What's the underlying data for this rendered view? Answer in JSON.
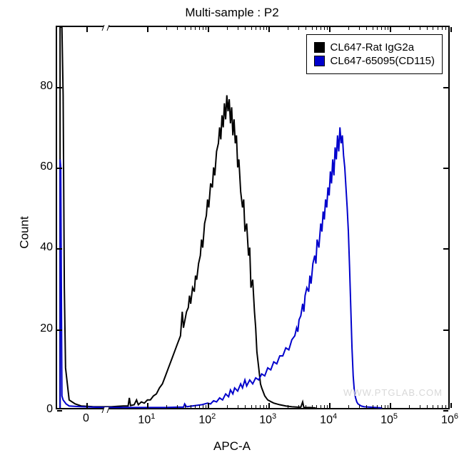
{
  "chart": {
    "type": "flow-cytometry-histogram",
    "title": "Multi-sample : P2",
    "xlabel": "APC-A",
    "ylabel": "Count",
    "background_color": "#ffffff",
    "border_color": "#000000",
    "ylim": [
      0,
      95
    ],
    "yticks": [
      0,
      20,
      40,
      60,
      80
    ],
    "xlim_log": [
      -0.5,
      6
    ],
    "xticks_log": [
      0,
      1,
      2,
      3,
      4,
      5,
      6
    ],
    "xtick_labels": [
      "0",
      "10^1",
      "10^2",
      "10^3",
      "10^4",
      "10^5",
      "10^6"
    ],
    "x_axis_break_at": 0.3,
    "title_fontsize": 17,
    "label_fontsize": 17,
    "tick_fontsize": 16,
    "line_width": 2,
    "watermark": "WWW.PTGLAB.COM",
    "watermark_color": "#d8d8d8",
    "legend": {
      "position": "top-right",
      "border_color": "#000000",
      "items": [
        {
          "label": "CL647-Rat IgG2a",
          "color": "#000000"
        },
        {
          "label": "CL647-65095(CD115)",
          "color": "#0000cc"
        }
      ]
    },
    "series": [
      {
        "name": "CL647-Rat IgG2a",
        "color": "#000000",
        "points": [
          [
            -0.45,
            0
          ],
          [
            -0.45,
            95
          ],
          [
            -0.42,
            95
          ],
          [
            -0.4,
            78
          ],
          [
            -0.38,
            30
          ],
          [
            -0.36,
            10
          ],
          [
            -0.3,
            2
          ],
          [
            -0.2,
            1
          ],
          [
            -0.1,
            0.5
          ],
          [
            0.0,
            0.4
          ],
          [
            0.1,
            0.3
          ],
          [
            0.2,
            0.3
          ],
          [
            0.3,
            0.3
          ],
          [
            0.4,
            0.3
          ],
          [
            0.5,
            0.4
          ],
          [
            0.6,
            0.5
          ],
          [
            0.68,
            0.5
          ],
          [
            0.7,
            2.5
          ],
          [
            0.72,
            0.6
          ],
          [
            0.78,
            0.8
          ],
          [
            0.82,
            2
          ],
          [
            0.85,
            0.8
          ],
          [
            0.9,
            1.5
          ],
          [
            0.95,
            1.2
          ],
          [
            1.0,
            2
          ],
          [
            1.05,
            2
          ],
          [
            1.1,
            3
          ],
          [
            1.15,
            3.5
          ],
          [
            1.2,
            5
          ],
          [
            1.25,
            6
          ],
          [
            1.3,
            8
          ],
          [
            1.35,
            10
          ],
          [
            1.4,
            12
          ],
          [
            1.45,
            14
          ],
          [
            1.5,
            16
          ],
          [
            1.55,
            18
          ],
          [
            1.58,
            24
          ],
          [
            1.6,
            20
          ],
          [
            1.65,
            24
          ],
          [
            1.68,
            25
          ],
          [
            1.7,
            28
          ],
          [
            1.72,
            26
          ],
          [
            1.75,
            30
          ],
          [
            1.78,
            29
          ],
          [
            1.8,
            33
          ],
          [
            1.82,
            32
          ],
          [
            1.85,
            36
          ],
          [
            1.88,
            38
          ],
          [
            1.9,
            42
          ],
          [
            1.92,
            40
          ],
          [
            1.95,
            46
          ],
          [
            1.98,
            48
          ],
          [
            2.0,
            52
          ],
          [
            2.02,
            50
          ],
          [
            2.05,
            56
          ],
          [
            2.08,
            55
          ],
          [
            2.1,
            60
          ],
          [
            2.12,
            58
          ],
          [
            2.15,
            64
          ],
          [
            2.18,
            66
          ],
          [
            2.2,
            70
          ],
          [
            2.22,
            67
          ],
          [
            2.24,
            73
          ],
          [
            2.26,
            70
          ],
          [
            2.28,
            76
          ],
          [
            2.3,
            72
          ],
          [
            2.32,
            78
          ],
          [
            2.34,
            74
          ],
          [
            2.36,
            77
          ],
          [
            2.38,
            71
          ],
          [
            2.4,
            75
          ],
          [
            2.42,
            68
          ],
          [
            2.44,
            72
          ],
          [
            2.46,
            66
          ],
          [
            2.48,
            68
          ],
          [
            2.5,
            60
          ],
          [
            2.52,
            62
          ],
          [
            2.55,
            54
          ],
          [
            2.58,
            50
          ],
          [
            2.6,
            52
          ],
          [
            2.62,
            44
          ],
          [
            2.65,
            46
          ],
          [
            2.68,
            38
          ],
          [
            2.7,
            40
          ],
          [
            2.72,
            30
          ],
          [
            2.75,
            32
          ],
          [
            2.78,
            24
          ],
          [
            2.8,
            20
          ],
          [
            2.82,
            14
          ],
          [
            2.85,
            10
          ],
          [
            2.88,
            6
          ],
          [
            2.9,
            5
          ],
          [
            2.95,
            3
          ],
          [
            3.0,
            2
          ],
          [
            3.1,
            1.2
          ],
          [
            3.2,
            0.8
          ],
          [
            3.3,
            0.5
          ],
          [
            3.4,
            0.3
          ],
          [
            3.5,
            0.2
          ],
          [
            3.55,
            0.2
          ],
          [
            3.58,
            1.5
          ],
          [
            3.6,
            0.1
          ],
          [
            3.7,
            0.1
          ],
          [
            3.8,
            0
          ]
        ]
      },
      {
        "name": "CL647-65095(CD115)",
        "color": "#0000cc",
        "points": [
          [
            -0.45,
            0
          ],
          [
            -0.45,
            62
          ],
          [
            -0.44,
            60
          ],
          [
            -0.42,
            3
          ],
          [
            -0.4,
            2
          ],
          [
            -0.35,
            1
          ],
          [
            -0.3,
            0.5
          ],
          [
            -0.1,
            0.3
          ],
          [
            0.1,
            0.2
          ],
          [
            0.3,
            0.15
          ],
          [
            0.5,
            0.1
          ],
          [
            0.7,
            0.1
          ],
          [
            0.9,
            0.1
          ],
          [
            1.1,
            0.1
          ],
          [
            1.3,
            0.1
          ],
          [
            1.5,
            0.2
          ],
          [
            1.6,
            0.2
          ],
          [
            1.62,
            1
          ],
          [
            1.65,
            0.3
          ],
          [
            1.7,
            0.4
          ],
          [
            1.8,
            0.6
          ],
          [
            1.9,
            0.8
          ],
          [
            2.0,
            1.2
          ],
          [
            2.05,
            1
          ],
          [
            2.1,
            1.8
          ],
          [
            2.15,
            1.5
          ],
          [
            2.2,
            2.5
          ],
          [
            2.25,
            2
          ],
          [
            2.3,
            3.5
          ],
          [
            2.35,
            2.8
          ],
          [
            2.38,
            4.5
          ],
          [
            2.42,
            3.5
          ],
          [
            2.45,
            5
          ],
          [
            2.5,
            4.2
          ],
          [
            2.55,
            6
          ],
          [
            2.58,
            5
          ],
          [
            2.62,
            7
          ],
          [
            2.65,
            5.5
          ],
          [
            2.7,
            7
          ],
          [
            2.75,
            6
          ],
          [
            2.8,
            7.5
          ],
          [
            2.85,
            7
          ],
          [
            2.9,
            8.5
          ],
          [
            2.95,
            8
          ],
          [
            3.0,
            10
          ],
          [
            3.05,
            9.5
          ],
          [
            3.1,
            11.5
          ],
          [
            3.15,
            11
          ],
          [
            3.2,
            13
          ],
          [
            3.25,
            13
          ],
          [
            3.3,
            15
          ],
          [
            3.35,
            14.5
          ],
          [
            3.4,
            17
          ],
          [
            3.45,
            18
          ],
          [
            3.48,
            20
          ],
          [
            3.5,
            19
          ],
          [
            3.52,
            22
          ],
          [
            3.55,
            23
          ],
          [
            3.58,
            26
          ],
          [
            3.6,
            24
          ],
          [
            3.62,
            28
          ],
          [
            3.65,
            30
          ],
          [
            3.68,
            29
          ],
          [
            3.7,
            33
          ],
          [
            3.72,
            31
          ],
          [
            3.75,
            36
          ],
          [
            3.78,
            38
          ],
          [
            3.8,
            36
          ],
          [
            3.82,
            42
          ],
          [
            3.85,
            40
          ],
          [
            3.88,
            46
          ],
          [
            3.9,
            44
          ],
          [
            3.92,
            49
          ],
          [
            3.94,
            47
          ],
          [
            3.96,
            52
          ],
          [
            3.98,
            50
          ],
          [
            4.0,
            55
          ],
          [
            4.02,
            53
          ],
          [
            4.04,
            59
          ],
          [
            4.06,
            56
          ],
          [
            4.08,
            62
          ],
          [
            4.1,
            58
          ],
          [
            4.12,
            65
          ],
          [
            4.14,
            62
          ],
          [
            4.16,
            68
          ],
          [
            4.18,
            64
          ],
          [
            4.2,
            70
          ],
          [
            4.22,
            66
          ],
          [
            4.24,
            68
          ],
          [
            4.26,
            63
          ],
          [
            4.28,
            60
          ],
          [
            4.3,
            55
          ],
          [
            4.32,
            50
          ],
          [
            4.34,
            44
          ],
          [
            4.36,
            35
          ],
          [
            4.38,
            25
          ],
          [
            4.4,
            15
          ],
          [
            4.42,
            8
          ],
          [
            4.44,
            4
          ],
          [
            4.46,
            2.5
          ],
          [
            4.48,
            1.5
          ],
          [
            4.5,
            1
          ],
          [
            4.55,
            0.5
          ],
          [
            4.6,
            0.3
          ],
          [
            4.7,
            0.2
          ],
          [
            4.8,
            0.1
          ],
          [
            4.9,
            0
          ]
        ]
      }
    ]
  }
}
